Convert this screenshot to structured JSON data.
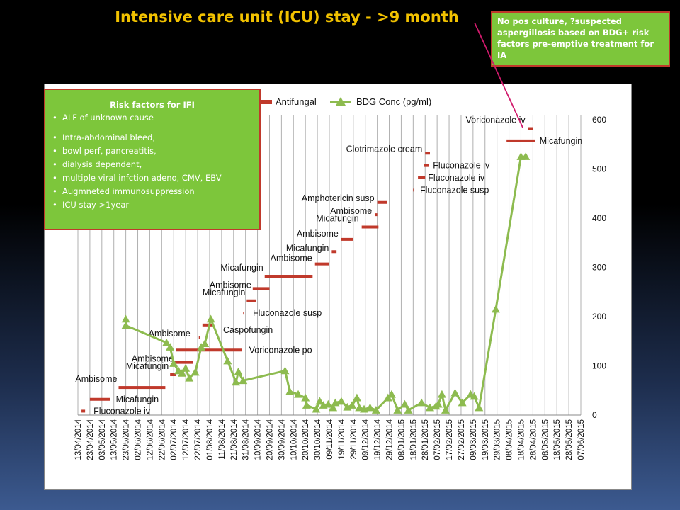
{
  "title": "Intensive care unit (ICU) stay - >9 month",
  "note": "No pos culture, ?suspected aspergillosis based on BDG+ risk factors pre-emptive treatment for IA",
  "risk_box": {
    "title": "Risk factors for IFI",
    "items": [
      "ALF of unknown cause",
      "Intra-abdominal bleed,",
      "bowl perf, pancreatitis,",
      "dialysis dependent,",
      "multiple viral infction adeno, CMV, EBV",
      "Augmneted immunosuppression",
      "ICU stay >1year"
    ]
  },
  "colors": {
    "title": "#f2c200",
    "box_fill": "#7dc63b",
    "box_border": "#c0392b",
    "antifungal": "#c0392b",
    "bdg": "#8dbb4f",
    "grid": "#b0b0b0",
    "arrow": "#d11a6c"
  },
  "chart_data": {
    "type": "line",
    "legend": [
      {
        "name": "Antifungal",
        "marker": "bar"
      },
      {
        "name": "BDG Conc (pg/ml)",
        "marker": "triangle"
      }
    ],
    "legend_position": "top",
    "grid": "vertical",
    "ylim": [
      0,
      600
    ],
    "yticks": [
      0,
      100,
      200,
      300,
      400,
      500,
      600
    ],
    "y_axis_side": "right",
    "xticks": [
      "13/04/2014",
      "23/04/2014",
      "03/05/2014",
      "13/05/2014",
      "23/05/2014",
      "02/06/2014",
      "12/06/2014",
      "22/06/2014",
      "02/07/2014",
      "12/07/2014",
      "22/07/2014",
      "01/08/2014",
      "11/08/2014",
      "21/08/2014",
      "31/08/2014",
      "10/09/2014",
      "20/09/2014",
      "30/09/2014",
      "10/10/2014",
      "20/10/2014",
      "30/10/2014",
      "09/11/2014",
      "19/11/2014",
      "29/11/2014",
      "09/12/2014",
      "19/12/2014",
      "29/12/2014",
      "08/01/2015",
      "18/01/2015",
      "28/01/2015",
      "07/02/2015",
      "17/02/2015",
      "27/02/2015",
      "09/03/2015",
      "19/03/2015",
      "29/03/2015",
      "08/04/2015",
      "18/04/2015",
      "28/04/2015",
      "08/05/2015",
      "18/05/2015",
      "28/05/2015",
      "07/06/2015"
    ],
    "bdg_series": {
      "name": "BDG Conc (pg/ml)",
      "points": [
        [
          "2014-05-23",
          195
        ],
        [
          "2014-05-23",
          182
        ],
        [
          "2014-06-26",
          147
        ],
        [
          "2014-06-29",
          138
        ],
        [
          "2014-07-02",
          105
        ],
        [
          "2014-07-06",
          90
        ],
        [
          "2014-07-09",
          85
        ],
        [
          "2014-07-12",
          95
        ],
        [
          "2014-07-15",
          75
        ],
        [
          "2014-07-20",
          87
        ],
        [
          "2014-07-25",
          138
        ],
        [
          "2014-07-28",
          145
        ],
        [
          "2014-08-02",
          195
        ],
        [
          "2014-08-16",
          110
        ],
        [
          "2014-08-23",
          67
        ],
        [
          "2014-08-25",
          88
        ],
        [
          "2014-08-29",
          70
        ],
        [
          "2014-10-03",
          90
        ],
        [
          "2014-10-07",
          48
        ],
        [
          "2014-10-14",
          42
        ],
        [
          "2014-10-20",
          35
        ],
        [
          "2014-10-21",
          20
        ],
        [
          "2014-10-29",
          12
        ],
        [
          "2014-11-01",
          28
        ],
        [
          "2014-11-04",
          20
        ],
        [
          "2014-11-08",
          22
        ],
        [
          "2014-11-12",
          15
        ],
        [
          "2014-11-14",
          25
        ],
        [
          "2014-11-19",
          28
        ],
        [
          "2014-11-24",
          16
        ],
        [
          "2014-11-28",
          20
        ],
        [
          "2014-12-02",
          35
        ],
        [
          "2014-12-04",
          15
        ],
        [
          "2014-12-08",
          12
        ],
        [
          "2014-12-13",
          15
        ],
        [
          "2014-12-18",
          10
        ],
        [
          "2014-12-28",
          35
        ],
        [
          "2014-12-31",
          42
        ],
        [
          "2015-01-05",
          10
        ],
        [
          "2015-01-11",
          22
        ],
        [
          "2015-01-14",
          10
        ],
        [
          "2015-01-25",
          25
        ],
        [
          "2015-02-01",
          15
        ],
        [
          "2015-02-06",
          18
        ],
        [
          "2015-02-08",
          22
        ],
        [
          "2015-02-11",
          42
        ],
        [
          "2015-02-14",
          10
        ],
        [
          "2015-02-22",
          45
        ],
        [
          "2015-02-28",
          25
        ],
        [
          "2015-03-07",
          42
        ],
        [
          "2015-03-10",
          38
        ],
        [
          "2015-03-14",
          15
        ],
        [
          "2015-03-28",
          215
        ],
        [
          "2015-04-18",
          525
        ],
        [
          "2015-04-22",
          525
        ]
      ]
    },
    "antifungal_bars": [
      {
        "start": "2014-04-16",
        "end": "2014-04-19",
        "y": 8,
        "label": "Fluconazole iv"
      },
      {
        "start": "2014-04-23",
        "end": "2014-05-10",
        "y": 32,
        "label": "Micafungin"
      },
      {
        "start": "2014-05-17",
        "end": "2014-06-25",
        "y": 56,
        "label": "Ambisome"
      },
      {
        "start": "2014-06-29",
        "end": "2014-07-04",
        "y": 82,
        "label": "Micafungin"
      },
      {
        "start": "2014-07-03",
        "end": "2014-07-18",
        "y": 107,
        "label": "Ambisome"
      },
      {
        "start": "2014-07-04",
        "end": "2014-08-28",
        "y": 132,
        "label": "Voriconazole po"
      },
      {
        "start": "2014-07-23",
        "end": "2014-07-24",
        "y": 157,
        "label": "Ambisome"
      },
      {
        "start": "2014-07-26",
        "end": "2014-08-04",
        "y": 183,
        "label": "Caspofungin"
      },
      {
        "start": "2014-08-29",
        "end": "2014-08-30",
        "y": 207,
        "label": "Fluconazole susp"
      },
      {
        "start": "2014-09-01",
        "end": "2014-09-09",
        "y": 232,
        "label": "Micafungin"
      },
      {
        "start": "2014-09-06",
        "end": "2014-09-20",
        "y": 257,
        "label": "Ambisome"
      },
      {
        "start": "2014-09-16",
        "end": "2014-10-26",
        "y": 282,
        "label": "Micafungin"
      },
      {
        "start": "2014-10-28",
        "end": "2014-11-09",
        "y": 307,
        "label": "Ambisome"
      },
      {
        "start": "2014-11-11",
        "end": "2014-11-15",
        "y": 332,
        "label": "Micafungin"
      },
      {
        "start": "2014-11-19",
        "end": "2014-11-29",
        "y": 357,
        "label": "Ambisome"
      },
      {
        "start": "2014-12-06",
        "end": "2014-12-20",
        "y": 382,
        "label": "Micafungin"
      },
      {
        "start": "2014-12-17",
        "end": "2014-12-19",
        "y": 407,
        "label": "Ambisome"
      },
      {
        "start": "2014-12-19",
        "end": "2014-12-27",
        "y": 432,
        "label": "Amphotericin susp"
      },
      {
        "start": "2015-01-18",
        "end": "2015-01-19",
        "y": 457,
        "label": "Fluconazole susp"
      },
      {
        "start": "2015-01-22",
        "end": "2015-01-28",
        "y": 482,
        "label": "Fluconazole iv"
      },
      {
        "start": "2015-01-27",
        "end": "2015-01-31",
        "y": 507,
        "label": "Fluconazole iv"
      },
      {
        "start": "2015-01-28",
        "end": "2015-02-01",
        "y": 532,
        "label": "Clotrimazole cream"
      },
      {
        "start": "2015-04-06",
        "end": "2015-04-30",
        "y": 557,
        "label": "Micafungin"
      },
      {
        "start": "2015-04-24",
        "end": "2015-04-28",
        "y": 582,
        "label": "Voriconazole iv"
      }
    ]
  }
}
